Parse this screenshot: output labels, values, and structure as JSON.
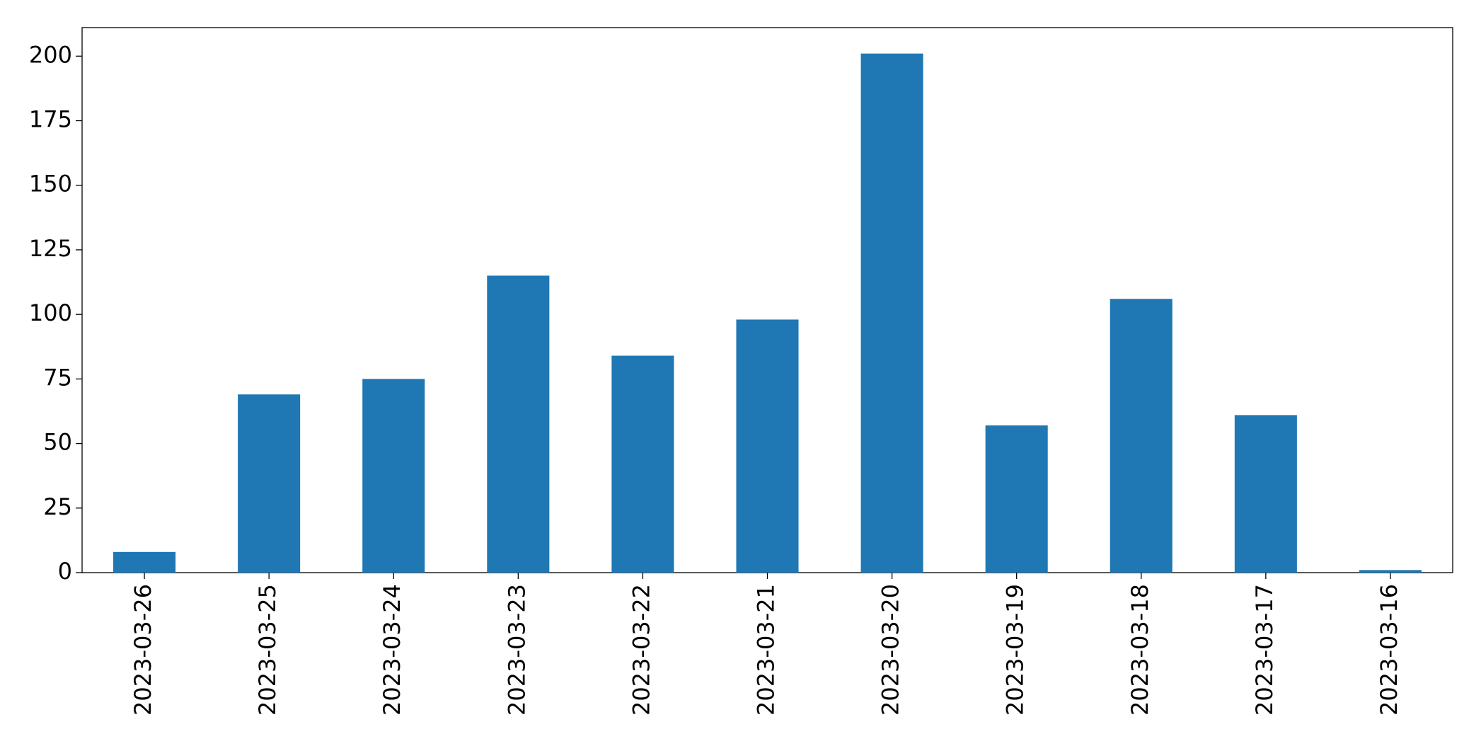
{
  "chart_data": {
    "type": "bar",
    "categories": [
      "2023-03-26",
      "2023-03-25",
      "2023-03-24",
      "2023-03-23",
      "2023-03-22",
      "2023-03-21",
      "2023-03-20",
      "2023-03-19",
      "2023-03-18",
      "2023-03-17",
      "2023-03-16"
    ],
    "values": [
      8,
      69,
      75,
      115,
      84,
      98,
      201,
      57,
      106,
      61,
      1
    ],
    "color": "#1f77b4",
    "ylim": [
      0,
      211.05
    ],
    "yticks": [
      0,
      25,
      50,
      75,
      100,
      125,
      150,
      175,
      200
    ],
    "grid": false
  }
}
